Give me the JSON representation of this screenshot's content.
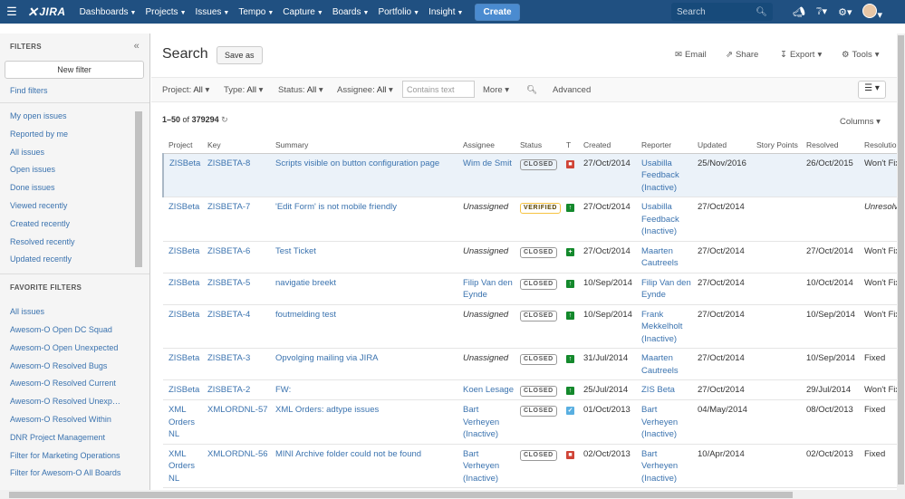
{
  "nav": {
    "logo": "JIRA",
    "items": [
      {
        "label": "Dashboards"
      },
      {
        "label": "Projects"
      },
      {
        "label": "Issues"
      },
      {
        "label": "Tempo"
      },
      {
        "label": "Capture"
      },
      {
        "label": "Boards"
      },
      {
        "label": "Portfolio"
      },
      {
        "label": "Insight"
      }
    ],
    "create_label": "Create",
    "search_placeholder": "Search"
  },
  "sidebar": {
    "filters_heading": "FILTERS",
    "new_filter_label": "New filter",
    "find_filters_label": "Find filters",
    "system_filters": [
      "My open issues",
      "Reported by me",
      "All issues",
      "Open issues",
      "Done issues",
      "Viewed recently",
      "Created recently",
      "Resolved recently",
      "Updated recently"
    ],
    "favorites_heading": "FAVORITE FILTERS",
    "favorite_filters": [
      "All issues",
      "Awesom-O Open DC Squad",
      "Awesom-O Open Unexpected",
      "Awesom-O Resolved Bugs",
      "Awesom-O Resolved Current",
      "Awesom-O Resolved Unexpected",
      "Awesom-O Resolved Within",
      "DNR Project Management",
      "Filter for Marketing Operations",
      "Filter for Awesom-O All Boards"
    ]
  },
  "main": {
    "title": "Search",
    "save_as_label": "Save as",
    "tools": {
      "email": "Email",
      "share": "Share",
      "export": "Export",
      "tools": "Tools"
    },
    "filterbar": {
      "project": {
        "label": "Project:",
        "value": "All"
      },
      "type": {
        "label": "Type:",
        "value": "All"
      },
      "status": {
        "label": "Status:",
        "value": "All"
      },
      "assignee": {
        "label": "Assignee:",
        "value": "All"
      },
      "text_placeholder": "Contains text",
      "more_label": "More",
      "advanced_label": "Advanced"
    },
    "results": {
      "range": "1–50",
      "of_label": "of",
      "total": "379294"
    },
    "columns_label": "Columns"
  },
  "table": {
    "headers": [
      "Project",
      "Key",
      "Summary",
      "Assignee",
      "Status",
      "T",
      "Created",
      "Reporter",
      "Updated",
      "Story Points",
      "Resolved",
      "Resolution"
    ],
    "rows": [
      {
        "project": "ZISBeta",
        "key": "ZISBETA-8",
        "summary": "Scripts visible on button configuration page",
        "assignee": "Wim de Smit",
        "status": "CLOSED",
        "type": "bug",
        "created": "27/Oct/2014",
        "reporter": "Usabilla Feedback (Inactive)",
        "updated": "25/Nov/2016",
        "story_points": "",
        "resolved": "26/Oct/2015",
        "resolution": "Won't Fix"
      },
      {
        "project": "ZISBeta",
        "key": "ZISBETA-7",
        "summary": "'Edit Form' is not mobile friendly",
        "assignee": "Unassigned",
        "status": "VERIFIED",
        "type": "improvement",
        "created": "27/Oct/2014",
        "reporter": "Usabilla Feedback (Inactive)",
        "updated": "27/Oct/2014",
        "story_points": "",
        "resolved": "",
        "resolution": "Unresolved"
      },
      {
        "project": "ZISBeta",
        "key": "ZISBETA-6",
        "summary": "Test Ticket",
        "assignee": "Unassigned",
        "status": "CLOSED",
        "type": "newfeature",
        "created": "27/Oct/2014",
        "reporter": "Maarten Cautreels",
        "updated": "27/Oct/2014",
        "story_points": "",
        "resolved": "27/Oct/2014",
        "resolution": "Won't Fix"
      },
      {
        "project": "ZISBeta",
        "key": "ZISBETA-5",
        "summary": "navigatie breekt",
        "assignee": "Filip Van den Eynde",
        "status": "CLOSED",
        "type": "improvement",
        "created": "10/Sep/2014",
        "reporter": "Filip Van den Eynde",
        "updated": "27/Oct/2014",
        "story_points": "",
        "resolved": "10/Oct/2014",
        "resolution": "Won't Fix"
      },
      {
        "project": "ZISBeta",
        "key": "ZISBETA-4",
        "summary": "foutmelding test",
        "assignee": "Unassigned",
        "status": "CLOSED",
        "type": "improvement",
        "created": "10/Sep/2014",
        "reporter": "Frank Mekkelholt (Inactive)",
        "updated": "27/Oct/2014",
        "story_points": "",
        "resolved": "10/Sep/2014",
        "resolution": "Won't Fix"
      },
      {
        "project": "ZISBeta",
        "key": "ZISBETA-3",
        "summary": "Opvolging mailing via JIRA",
        "assignee": "Unassigned",
        "status": "CLOSED",
        "type": "improvement",
        "created": "31/Jul/2014",
        "reporter": "Maarten Cautreels",
        "updated": "27/Oct/2014",
        "story_points": "",
        "resolved": "10/Sep/2014",
        "resolution": "Fixed"
      },
      {
        "project": "ZISBeta",
        "key": "ZISBETA-2",
        "summary": "FW:",
        "assignee": "Koen Lesage",
        "status": "CLOSED",
        "type": "improvement",
        "created": "25/Jul/2014",
        "reporter": "ZIS Beta",
        "updated": "27/Oct/2014",
        "story_points": "",
        "resolved": "29/Jul/2014",
        "resolution": "Won't Fix"
      },
      {
        "project": "XML Orders NL",
        "key": "XMLORDNL-57",
        "summary": "XML Orders: adtype issues",
        "assignee": "Bart Verheyen (Inactive)",
        "status": "CLOSED",
        "type": "task",
        "created": "01/Oct/2013",
        "reporter": "Bart Verheyen (Inactive)",
        "updated": "04/May/2014",
        "story_points": "",
        "resolved": "08/Oct/2013",
        "resolution": "Fixed"
      },
      {
        "project": "XML Orders NL",
        "key": "XMLORDNL-56",
        "summary": "MINI Archive folder could not be found",
        "assignee": "Bart Verheyen (Inactive)",
        "status": "CLOSED",
        "type": "bug",
        "created": "02/Oct/2013",
        "reporter": "Bart Verheyen (Inactive)",
        "updated": "10/Apr/2014",
        "story_points": "",
        "resolved": "02/Oct/2013",
        "resolution": "Fixed"
      }
    ]
  }
}
